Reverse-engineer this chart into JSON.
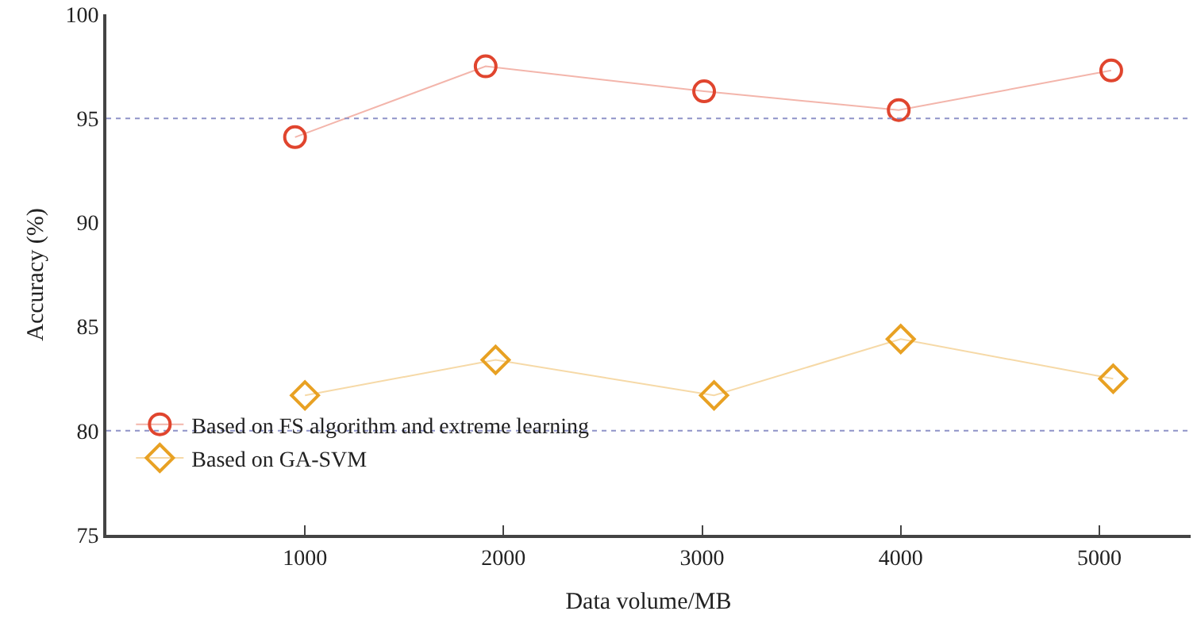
{
  "chart_data": {
    "type": "line",
    "xlabel": "Data volume/MB",
    "ylabel": "Accuracy (%)",
    "xlim": [
      0,
      5460
    ],
    "xticks": [
      1000,
      2000,
      3000,
      4000,
      5000
    ],
    "ylim": [
      75,
      100
    ],
    "yticks": [
      75,
      80,
      85,
      90,
      95,
      100
    ],
    "series": [
      {
        "name": "Based on FS algorithm and extreme learning",
        "color": "#e0452e",
        "marker": "circle",
        "x": [
          950,
          1910,
          3010,
          3990,
          5060
        ],
        "values": [
          94.1,
          97.5,
          96.3,
          95.4,
          97.3
        ]
      },
      {
        "name": "Based on GA-SVM",
        "color": "#e8a123",
        "marker": "diamond",
        "x": [
          1000,
          1960,
          3060,
          4000,
          5070
        ],
        "values": [
          81.7,
          83.4,
          81.7,
          84.4,
          82.5
        ]
      }
    ],
    "ref_lines": [
      {
        "axis": "y",
        "value": 95,
        "color": "#8f93c8",
        "line_style": "dotted"
      },
      {
        "axis": "y",
        "value": 80,
        "color": "#8f93c8",
        "line_style": "dotted"
      }
    ],
    "grid": false,
    "legend": "bottom left"
  }
}
